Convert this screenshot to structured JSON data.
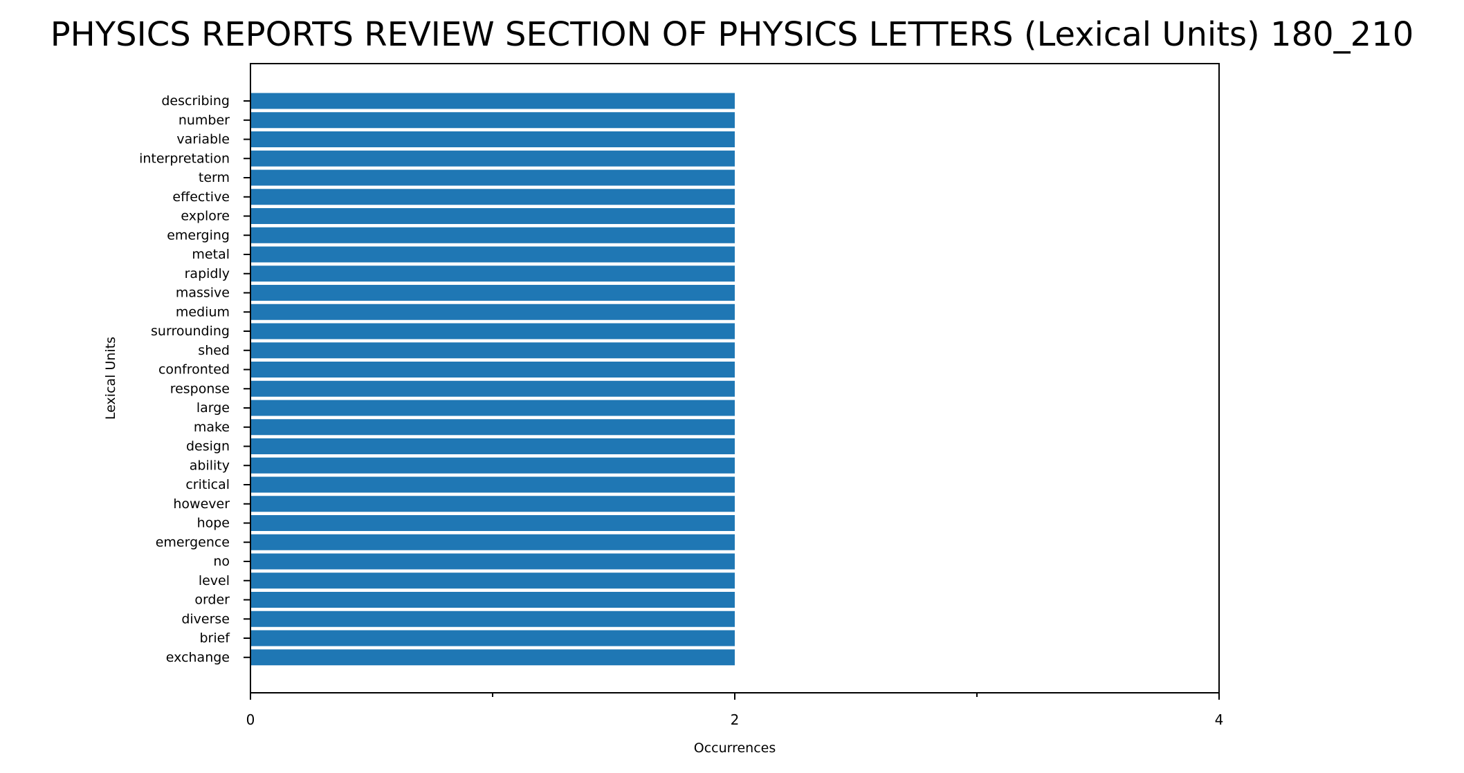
{
  "chart_data": {
    "type": "bar",
    "orientation": "horizontal",
    "title": "PHYSICS REPORTS REVIEW SECTION OF PHYSICS LETTERS (Lexical Units) 180_210",
    "xlabel": "Occurrences",
    "ylabel": "Lexical Units",
    "xlim": [
      0,
      4
    ],
    "xticks": [
      0,
      2,
      4
    ],
    "categories": [
      "describing",
      "number",
      "variable",
      "interpretation",
      "term",
      "effective",
      "explore",
      "emerging",
      "metal",
      "rapidly",
      "massive",
      "medium",
      "surrounding",
      "shed",
      "confronted",
      "response",
      "large",
      "make",
      "design",
      "ability",
      "critical",
      "however",
      "hope",
      "emergence",
      "no",
      "level",
      "order",
      "diverse",
      "brief",
      "exchange"
    ],
    "values": [
      2,
      2,
      2,
      2,
      2,
      2,
      2,
      2,
      2,
      2,
      2,
      2,
      2,
      2,
      2,
      2,
      2,
      2,
      2,
      2,
      2,
      2,
      2,
      2,
      2,
      2,
      2,
      2,
      2,
      2
    ],
    "bar_color": "#1f77b4",
    "grid": false,
    "legend": "none"
  }
}
